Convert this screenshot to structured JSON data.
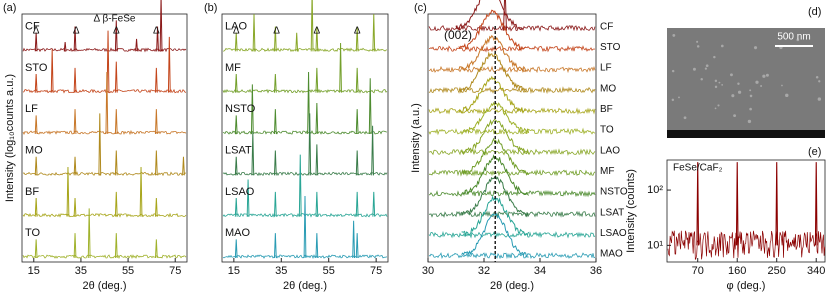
{
  "chart_data": [
    {
      "type": "line",
      "label": "(a)",
      "xlabel": "2θ (deg.)",
      "ylabel": "Intensity (log₁₀counts a.u.)",
      "xlim": [
        10,
        80
      ],
      "xticks": [
        15,
        35,
        55,
        75
      ],
      "annotation": "Δ β-FeSe",
      "marker": {
        "label": "Δ",
        "x": [
          16,
          33,
          50,
          67
        ]
      },
      "series": [
        {
          "name": "CF",
          "color": "#8b1a1a",
          "x": [
            16,
            28.3,
            32.5,
            50,
            58.6,
            67.5,
            69
          ],
          "values": [
            0.3,
            0.15,
            0.4,
            0.5,
            0.2,
            0.4,
            0.9
          ]
        },
        {
          "name": "STO",
          "color": "#c4461c",
          "x": [
            16,
            22.8,
            32.5,
            46.5,
            50,
            67,
            72.5
          ],
          "values": [
            0.3,
            0.7,
            0.4,
            1.0,
            0.5,
            0.4,
            0.9
          ]
        },
        {
          "name": "LF",
          "color": "#c8782a",
          "x": [
            16,
            32.5,
            46,
            50,
            67
          ],
          "values": [
            0.3,
            0.4,
            1.0,
            0.4,
            0.4
          ]
        },
        {
          "name": "MO",
          "color": "#b08a1e",
          "x": [
            16,
            32.5,
            43,
            50,
            67,
            78.5
          ],
          "values": [
            0.3,
            0.3,
            1.0,
            0.4,
            0.4,
            0.3
          ]
        },
        {
          "name": "BF",
          "color": "#a8a61c",
          "x": [
            16,
            29.5,
            32.5,
            50,
            60.5,
            67
          ],
          "values": [
            0.3,
            0.8,
            0.3,
            0.4,
            0.8,
            0.3
          ]
        },
        {
          "name": "TO",
          "color": "#a0b22c",
          "x": [
            16,
            32.5,
            38.5,
            50,
            67
          ],
          "values": [
            0.3,
            0.4,
            0.8,
            0.4,
            0.3
          ]
        }
      ]
    },
    {
      "type": "line",
      "label": "(b)",
      "xlabel": "2θ (deg.)",
      "xlim": [
        10,
        80
      ],
      "xticks": [
        15,
        35,
        55,
        75
      ],
      "marker": {
        "label": "Δ",
        "x": [
          16,
          33,
          50,
          67
        ]
      },
      "series": [
        {
          "name": "LAO",
          "color": "#8aa82a",
          "x": [
            16,
            23.5,
            32.5,
            41.5,
            48,
            50,
            67,
            74
          ],
          "values": [
            0.3,
            0.6,
            0.4,
            0.3,
            1.0,
            0.4,
            0.4,
            0.6
          ]
        },
        {
          "name": "MF",
          "color": "#74a02c",
          "x": [
            16,
            32.5,
            50,
            60,
            67
          ],
          "values": [
            0.3,
            0.3,
            0.4,
            0.8,
            0.4
          ]
        },
        {
          "name": "NSTO",
          "color": "#4e8c30",
          "x": [
            16,
            22.8,
            32.5,
            46.5,
            50,
            67,
            72.5
          ],
          "values": [
            0.3,
            0.8,
            0.4,
            1.0,
            0.5,
            0.4,
            0.9
          ]
        },
        {
          "name": "LSAT",
          "color": "#3a7c4a",
          "x": [
            16,
            23,
            32.5,
            47,
            50,
            67,
            73.5
          ],
          "values": [
            0.3,
            0.7,
            0.4,
            1.0,
            0.5,
            0.4,
            0.8
          ]
        },
        {
          "name": "LSAO",
          "color": "#2aa696",
          "x": [
            16,
            21,
            32.5,
            43,
            50,
            67,
            74
          ],
          "values": [
            0.3,
            0.6,
            0.4,
            1.0,
            0.4,
            0.4,
            0.4
          ]
        },
        {
          "name": "MAO",
          "color": "#2a9cb4",
          "x": [
            16,
            32.5,
            45,
            50,
            65.5,
            67
          ],
          "values": [
            0.3,
            0.4,
            1.0,
            0.4,
            0.6,
            0.4
          ]
        }
      ]
    },
    {
      "type": "hump",
      "label": "(c)",
      "xlabel": "2θ (deg.)",
      "ylabel": "Intensity (a.u.)",
      "xlim": [
        30,
        36
      ],
      "xticks": [
        30,
        32,
        34,
        36
      ],
      "annotation": "(002)",
      "vline": 32.4,
      "series": [
        {
          "name": "CF",
          "color": "#8b1a1a",
          "x": [
            32.2,
            32.75
          ],
          "values": [
            0.9,
            1.0
          ]
        },
        {
          "name": "STO",
          "color": "#c4461c",
          "x": [
            32.3
          ],
          "values": [
            0.8
          ]
        },
        {
          "name": "LF",
          "color": "#c8782a",
          "x": [
            32.3
          ],
          "values": [
            0.7
          ]
        },
        {
          "name": "MO",
          "color": "#b08a1e",
          "x": [
            32.3
          ],
          "values": [
            0.8
          ]
        },
        {
          "name": "BF",
          "color": "#a8a61c",
          "x": [
            32.3
          ],
          "values": [
            0.7
          ]
        },
        {
          "name": "TO",
          "color": "#a0b22c",
          "x": [
            32.4
          ],
          "values": [
            0.6
          ]
        },
        {
          "name": "LAO",
          "color": "#8aa82a",
          "x": [
            32.4
          ],
          "values": [
            0.7
          ]
        },
        {
          "name": "MF",
          "color": "#74a02c",
          "x": [
            32.4
          ],
          "values": [
            0.7
          ]
        },
        {
          "name": "NSTO",
          "color": "#4e8c30",
          "x": [
            32.4
          ],
          "values": [
            0.8
          ]
        },
        {
          "name": "LSAT",
          "color": "#3a7c4a",
          "x": [
            32.4
          ],
          "values": [
            0.8
          ]
        },
        {
          "name": "LSAO",
          "color": "#2aa696",
          "x": [
            32.4
          ],
          "values": [
            0.8
          ]
        },
        {
          "name": "MAO",
          "color": "#2a9cb4",
          "x": [
            32.4
          ],
          "values": [
            0.9
          ]
        }
      ]
    },
    {
      "type": "image",
      "label": "(d)",
      "annotation": "500 nm"
    },
    {
      "type": "log",
      "label": "(e)",
      "xlabel": "φ (deg.)",
      "ylabel": "Intensity (counts)",
      "annotation": "FeSe/CaF₂",
      "xlim": [
        0,
        360
      ],
      "xticks": [
        70,
        160,
        250,
        340
      ],
      "ylim": [
        5,
        350
      ],
      "yticks": [
        {
          "value": 10,
          "label": "10¹"
        },
        {
          "value": 100,
          "label": "10²"
        }
      ],
      "series": [
        {
          "color": "#8b0000",
          "x": [
            70,
            160,
            250,
            340
          ],
          "values": [
            320,
            320,
            320,
            320
          ]
        }
      ]
    }
  ]
}
